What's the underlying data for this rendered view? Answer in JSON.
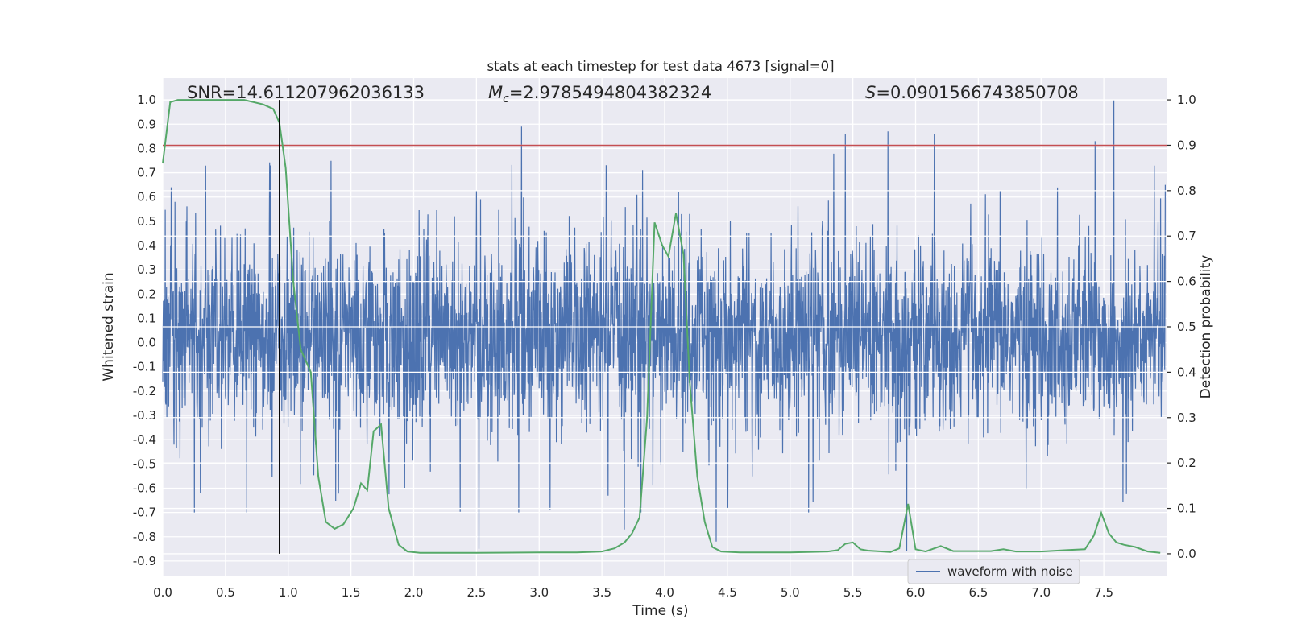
{
  "chart_data": {
    "type": "line",
    "title": "stats at each timestep for test data 4673 [signal=0]",
    "xlabel": "Time (s)",
    "ylabel": "Whitened strain",
    "y2label": "Detection probability",
    "xlim": [
      0.0,
      8.0
    ],
    "ylim": [
      -0.96,
      1.09
    ],
    "y2lim": [
      -0.048,
      1.048
    ],
    "xticks": [
      "0.0",
      "0.5",
      "1.0",
      "1.5",
      "2.0",
      "2.5",
      "3.0",
      "3.5",
      "4.0",
      "4.5",
      "5.0",
      "5.5",
      "6.0",
      "6.5",
      "7.0",
      "7.5"
    ],
    "yticks": [
      "1.0",
      "0.9",
      "0.8",
      "0.7",
      "0.6",
      "0.5",
      "0.4",
      "0.3",
      "0.2",
      "0.1",
      "0.0",
      "-0.1",
      "-0.2",
      "-0.3",
      "-0.4",
      "-0.5",
      "-0.6",
      "-0.7",
      "-0.8",
      "-0.9"
    ],
    "y2ticks": [
      "1.0",
      "0.9",
      "0.8",
      "0.7",
      "0.6",
      "0.5",
      "0.4",
      "0.3",
      "0.2",
      "0.1",
      "0.0"
    ],
    "annotations": {
      "snr": "SNR=14.611207962036133",
      "mc_symbol": "M",
      "mc_sub": "c",
      "mc_value": "=2.9785494804382324",
      "s_symbol": "S",
      "s_value": "=0.0901566743850708"
    },
    "legend": {
      "location": "lower-right",
      "entries": [
        "waveform with noise"
      ]
    },
    "threshold": {
      "axis": "y2",
      "value": 0.9,
      "color": "#c44e52"
    },
    "marker_time": 0.93,
    "series": [
      {
        "name": "waveform with noise",
        "axis": "y",
        "color": "#4c72b0",
        "kind": "dense-noise",
        "x_range": [
          0.0,
          7.99
        ],
        "typical_range": [
          -0.35,
          0.4
        ],
        "extremes": [
          [
            0.3,
            -0.62
          ],
          [
            0.86,
            0.73
          ],
          [
            2.52,
            -0.85
          ],
          [
            2.86,
            0.89
          ],
          [
            3.68,
            -0.77
          ],
          [
            3.78,
            0.61
          ],
          [
            4.41,
            -0.82
          ],
          [
            5.44,
            0.86
          ],
          [
            5.78,
            0.87
          ],
          [
            5.93,
            -0.86
          ],
          [
            6.15,
            0.86
          ],
          [
            7.43,
            0.83
          ],
          [
            7.58,
            1.0
          ],
          [
            7.99,
            0.65
          ]
        ]
      },
      {
        "name": "detection probability",
        "axis": "y2",
        "color": "#55a868",
        "x": [
          0.0,
          0.06,
          0.12,
          0.2,
          0.35,
          0.5,
          0.65,
          0.8,
          0.88,
          0.93,
          0.98,
          1.04,
          1.1,
          1.18,
          1.24,
          1.3,
          1.37,
          1.44,
          1.52,
          1.58,
          1.63,
          1.68,
          1.74,
          1.8,
          1.88,
          1.95,
          2.05,
          2.5,
          3.0,
          3.3,
          3.5,
          3.6,
          3.68,
          3.74,
          3.8,
          3.86,
          3.92,
          3.98,
          4.03,
          4.09,
          4.15,
          4.2,
          4.26,
          4.32,
          4.38,
          4.45,
          4.6,
          5.0,
          5.3,
          5.38,
          5.44,
          5.5,
          5.56,
          5.62,
          5.8,
          5.87,
          5.94,
          6.0,
          6.08,
          6.2,
          6.3,
          6.4,
          6.6,
          6.7,
          6.8,
          7.0,
          7.2,
          7.35,
          7.42,
          7.48,
          7.54,
          7.6,
          7.66,
          7.75,
          7.85,
          7.95
        ],
        "y": [
          0.86,
          0.995,
          1.0,
          1.0,
          1.0,
          1.0,
          1.0,
          0.99,
          0.98,
          0.95,
          0.85,
          0.6,
          0.45,
          0.4,
          0.17,
          0.07,
          0.055,
          0.065,
          0.1,
          0.155,
          0.14,
          0.27,
          0.285,
          0.1,
          0.02,
          0.005,
          0.002,
          0.002,
          0.003,
          0.003,
          0.005,
          0.012,
          0.025,
          0.045,
          0.08,
          0.3,
          0.73,
          0.68,
          0.655,
          0.75,
          0.66,
          0.38,
          0.17,
          0.07,
          0.015,
          0.005,
          0.003,
          0.003,
          0.005,
          0.008,
          0.022,
          0.025,
          0.01,
          0.007,
          0.004,
          0.012,
          0.11,
          0.01,
          0.005,
          0.017,
          0.006,
          0.006,
          0.006,
          0.01,
          0.005,
          0.005,
          0.008,
          0.01,
          0.04,
          0.09,
          0.045,
          0.025,
          0.02,
          0.015,
          0.005,
          0.002
        ]
      }
    ]
  }
}
